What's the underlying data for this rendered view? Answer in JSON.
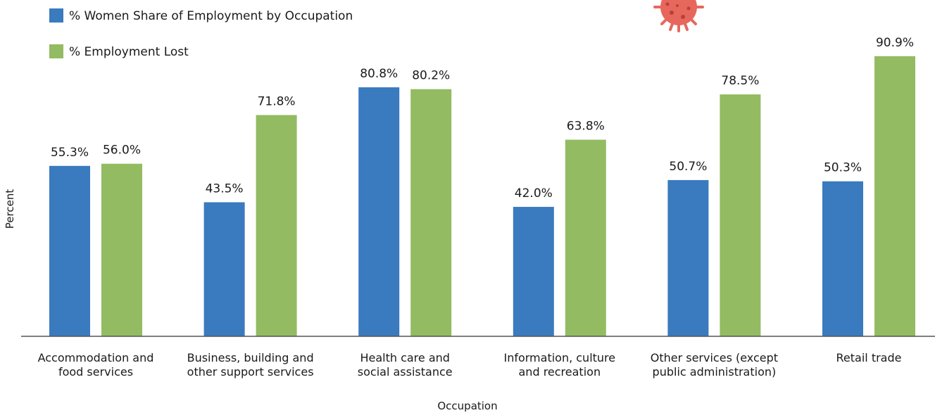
{
  "chart_data": {
    "type": "bar",
    "categories": [
      [
        "Accommodation and",
        "food services"
      ],
      [
        "Business, building and",
        "other support services"
      ],
      [
        "Health care and",
        "social assistance"
      ],
      [
        "Information, culture",
        "and recreation"
      ],
      [
        "Other services (except",
        "public administration)"
      ],
      [
        "Retail trade"
      ]
    ],
    "series": [
      {
        "name": "% Women Share of Employment by Occupation",
        "color": "#3a7abf",
        "values": [
          55.3,
          43.5,
          80.8,
          42.0,
          50.7,
          50.3
        ],
        "labels": [
          "55.3%",
          "43.5%",
          "80.8%",
          "42.0%",
          "50.7%",
          "50.3%"
        ]
      },
      {
        "name": "% Employment Lost",
        "color": "#93bb62",
        "values": [
          56.0,
          71.8,
          80.2,
          63.8,
          78.5,
          90.9
        ],
        "labels": [
          "56.0%",
          "71.8%",
          "80.2%",
          "63.8%",
          "78.5%",
          "90.9%"
        ]
      }
    ],
    "xlabel": "Occupation",
    "ylabel": "Percent",
    "ylim": [
      0,
      100
    ],
    "grid": false,
    "legend": "top-left"
  },
  "decor": {
    "virus_icon_color": "#e8675d",
    "axis_color": "#555555"
  }
}
